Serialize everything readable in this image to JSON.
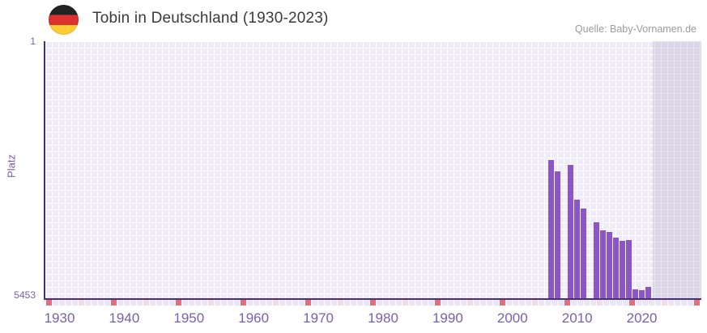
{
  "header": {
    "title": "Tobin in Deutschland (1930-2023)",
    "source": "Quelle: Baby-Vornamen.de",
    "flag_icon": "german-flag-circle"
  },
  "chart_data": {
    "type": "bar",
    "title": "Tobin in Deutschland (1930-2023)",
    "xlabel": "",
    "ylabel": "Platz",
    "y_axis": {
      "best": 1,
      "worst": 5453,
      "inverted": true,
      "tick_labels": [
        "1",
        "5453"
      ]
    },
    "x_axis": {
      "tick_labels": [
        "1930",
        "1940",
        "1950",
        "1960",
        "1970",
        "1980",
        "1990",
        "2000",
        "2010",
        "2020"
      ],
      "first_year": 1930,
      "last_year": 2023
    },
    "series": [
      {
        "name": "Platz",
        "points": [
          {
            "year": 2006,
            "platz": 2550
          },
          {
            "year": 2007,
            "platz": 2800
          },
          {
            "year": 2009,
            "platz": 2660
          },
          {
            "year": 2010,
            "platz": 3400
          },
          {
            "year": 2011,
            "platz": 3600
          },
          {
            "year": 2013,
            "platz": 3885
          },
          {
            "year": 2014,
            "platz": 4060
          },
          {
            "year": 2015,
            "platz": 4090
          },
          {
            "year": 2016,
            "platz": 4220
          },
          {
            "year": 2017,
            "platz": 4295
          },
          {
            "year": 2018,
            "platz": 4275
          },
          {
            "year": 2019,
            "platz": 5335
          },
          {
            "year": 2020,
            "platz": 5355
          },
          {
            "year": 2021,
            "platz": 5285
          }
        ]
      }
    ],
    "decade_strip": {
      "red_years_start": 1928,
      "pink_years_start": 1933,
      "interval": 10
    },
    "colors": {
      "bar": "#8b57c6",
      "axis_line": "#46307d",
      "tick_label": "#7a5fae",
      "grid_square": "#efebf7",
      "no_data_band": "rgba(167,160,193,0.28)",
      "strip_base": "#ebe6f4",
      "strip_red": "#e76d78",
      "strip_pink": "#f5dbe2",
      "title_text": "#3a3a3a",
      "source_text": "#9b9b9b",
      "flag_black": "#232323",
      "flag_red": "#dd3030",
      "flag_gold": "#ffcc33"
    }
  }
}
